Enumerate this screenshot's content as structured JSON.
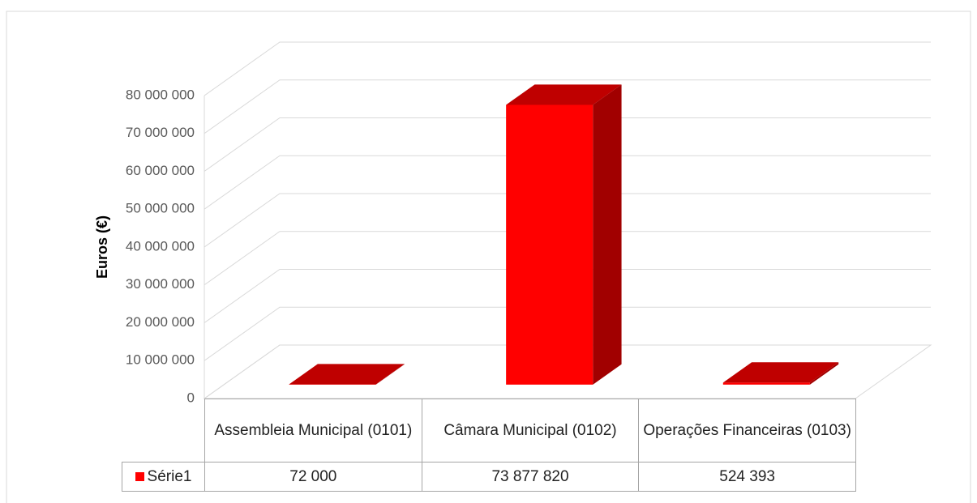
{
  "chart_data": {
    "type": "bar3d",
    "y_label": "Euros (€)",
    "categories": [
      "Assembleia Municipal (0101)",
      "Câmara Municipal (0102)",
      "Operações Financeiras (0103)"
    ],
    "series": [
      {
        "name": "Série1",
        "color": "#ff0000",
        "values": [
          72000,
          73877820,
          524393
        ],
        "value_labels": [
          "72 000",
          "73 877 820",
          "524 393"
        ]
      }
    ],
    "ylim": [
      0,
      80000000
    ],
    "yticks": [
      0,
      {
        "value": 10000000,
        "label": "10 000 000"
      },
      {
        "value": 20000000,
        "label": "20 000 000"
      },
      {
        "value": 30000000,
        "label": "30 000 000"
      },
      {
        "value": 40000000,
        "label": "40 000 000"
      },
      {
        "value": 50000000,
        "label": "50 000 000"
      },
      {
        "value": 60000000,
        "label": "60 000 000"
      },
      {
        "value": 70000000,
        "label": "70 000 000"
      },
      {
        "value": 80000000,
        "label": "80 000 000"
      }
    ],
    "grid": true,
    "data_table": true
  }
}
